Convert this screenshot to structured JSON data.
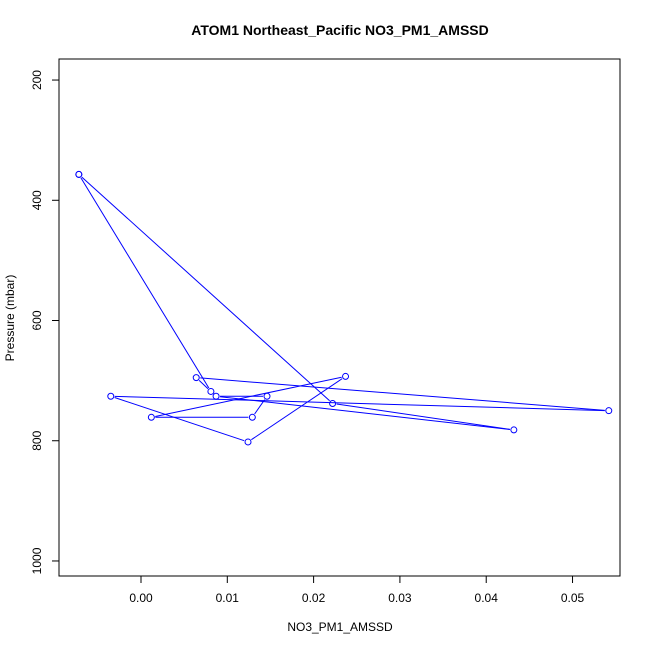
{
  "chart_data": {
    "type": "line",
    "title": "ATOM1 Northeast_Pacific NO3_PM1_AMSSD",
    "xlabel": "NO3_PM1_AMSSD",
    "ylabel": "Pressure (mbar)",
    "xlim": [
      -0.0095,
      0.0555
    ],
    "ylim": [
      1025,
      165
    ],
    "y_reversed": true,
    "grid": false,
    "legend": "none",
    "x_ticks": [
      0.0,
      0.01,
      0.02,
      0.03,
      0.04,
      0.05
    ],
    "x_tick_labels": [
      "0.00",
      "0.01",
      "0.02",
      "0.03",
      "0.04",
      "0.05"
    ],
    "y_ticks": [
      200,
      400,
      600,
      800,
      1000
    ],
    "y_tick_labels": [
      "200",
      "400",
      "600",
      "800",
      "1000"
    ],
    "series": [
      {
        "color": "#0000ff",
        "points": [
          {
            "x": -0.0072,
            "y": 357
          },
          {
            "x": 0.0081,
            "y": 718
          },
          {
            "x": 0.0064,
            "y": 695
          },
          {
            "x": 0.0542,
            "y": 750
          },
          {
            "x": -0.0035,
            "y": 726
          },
          {
            "x": 0.0124,
            "y": 802
          },
          {
            "x": 0.0237,
            "y": 693
          },
          {
            "x": 0.0012,
            "y": 761
          },
          {
            "x": 0.0129,
            "y": 761
          },
          {
            "x": 0.0146,
            "y": 726
          },
          {
            "x": 0.0087,
            "y": 726
          },
          {
            "x": 0.0432,
            "y": 782
          },
          {
            "x": 0.0222,
            "y": 738
          },
          {
            "x": -0.0072,
            "y": 357
          }
        ]
      }
    ]
  }
}
